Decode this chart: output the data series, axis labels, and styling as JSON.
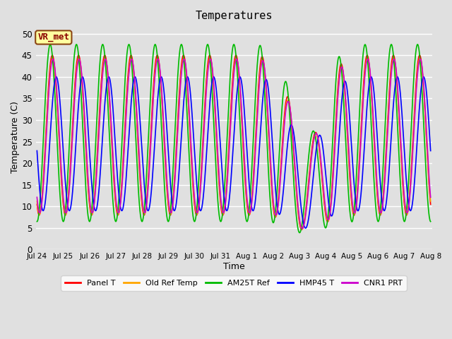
{
  "title": "Temperatures",
  "xlabel": "Time",
  "ylabel": "Temperature (C)",
  "annotation": "VR_met",
  "ylim": [
    0,
    52
  ],
  "fig_bg_color": "#e0e0e0",
  "plot_bg_color": "#e0e0e0",
  "legend": [
    "Panel T",
    "Old Ref Temp",
    "AM25T Ref",
    "HMP45 T",
    "CNR1 PRT"
  ],
  "line_colors": [
    "#ff0000",
    "#ffa500",
    "#00bb00",
    "#0000ff",
    "#cc00cc"
  ],
  "line_widths": [
    1.2,
    1.2,
    1.2,
    1.2,
    1.2
  ],
  "xtick_labels": [
    "Jul 24",
    "Jul 25",
    "Jul 26",
    "Jul 27",
    "Jul 28",
    "Jul 29",
    "Jul 30",
    "Jul 31",
    "Aug 1",
    "Aug 2",
    "Aug 3",
    "Aug 4",
    "Aug 5",
    "Aug 6",
    "Aug 7",
    "Aug 8"
  ],
  "days": 15,
  "points_per_day": 144,
  "annotation_color": "#8B0000",
  "annotation_bg": "#ffffa0",
  "annotation_edge": "#8B4513"
}
